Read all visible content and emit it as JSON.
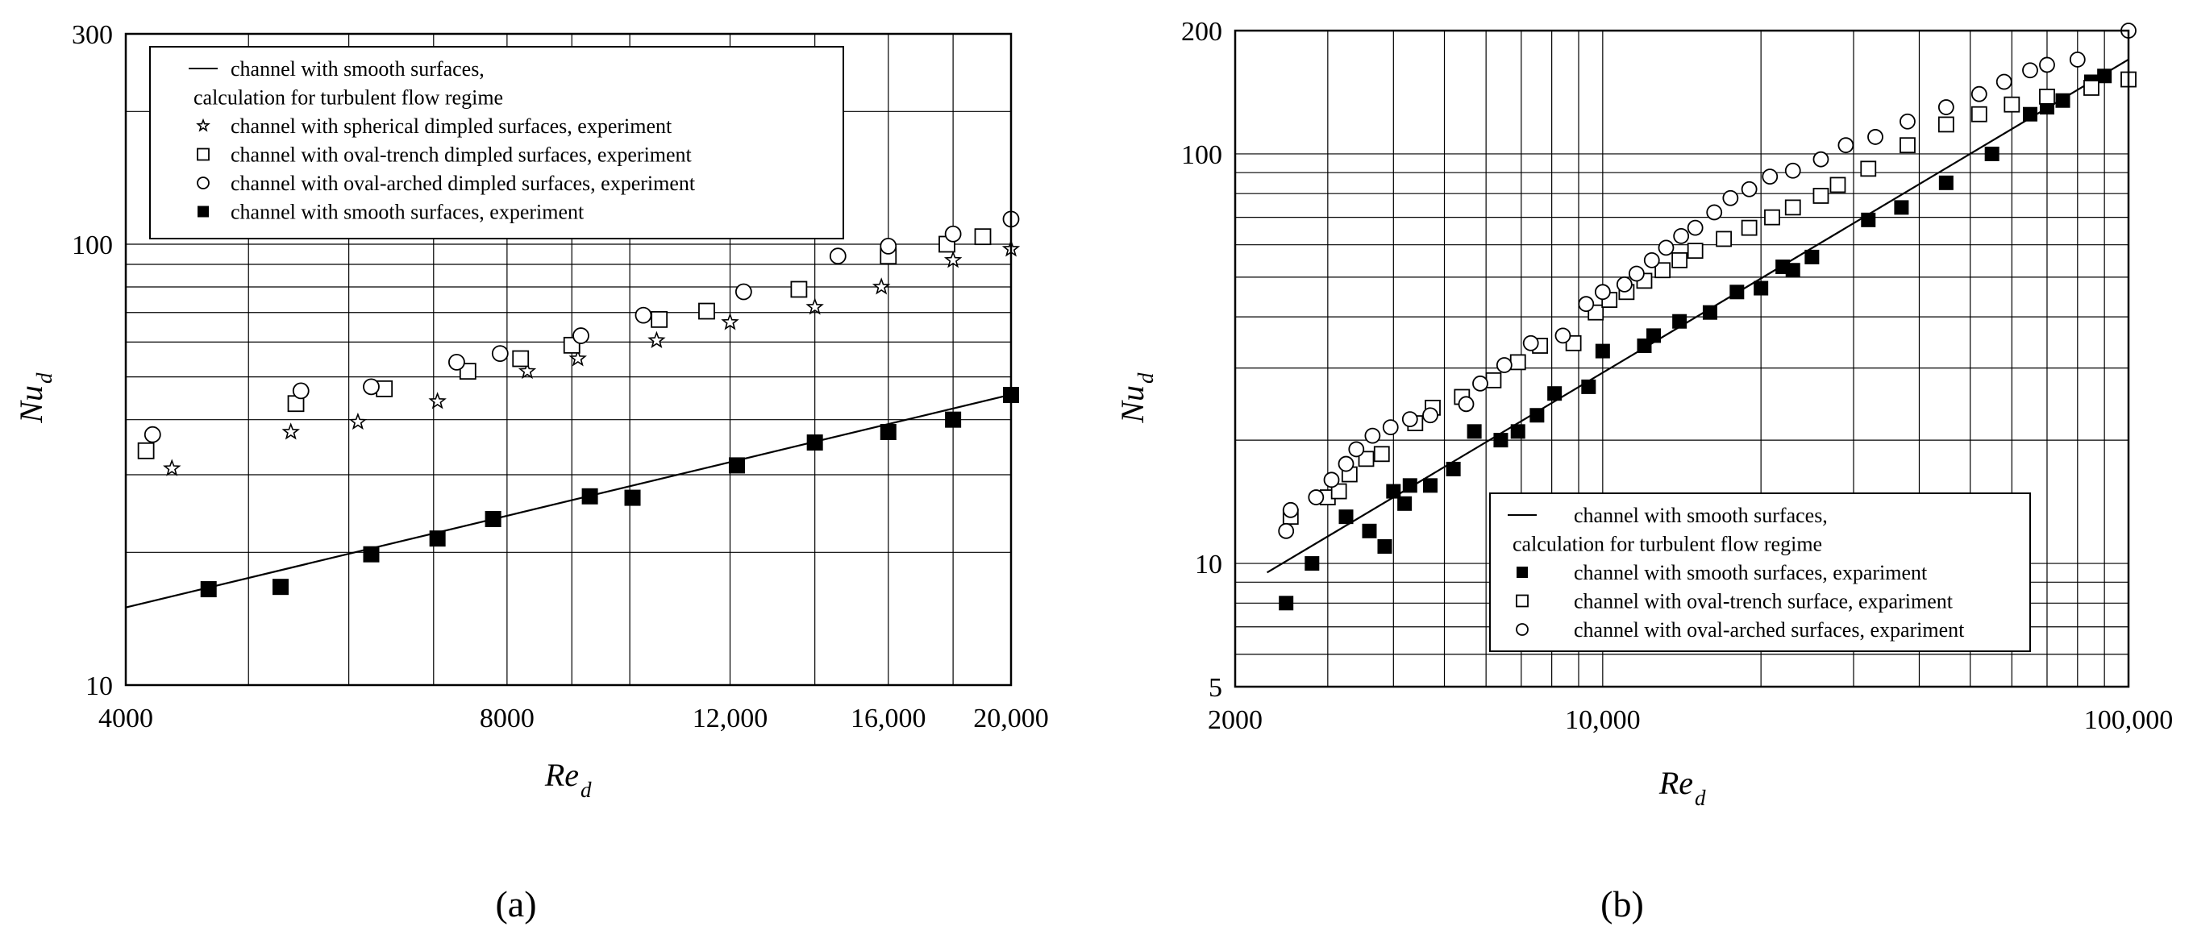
{
  "chart_data": [
    {
      "panel": "a",
      "type": "scatter",
      "x_scale": "log",
      "y_scale": "log",
      "xlim": [
        4000,
        20000
      ],
      "ylim": [
        10,
        300
      ],
      "xlabel": {
        "main": "Re",
        "sub": "d"
      },
      "ylabel": {
        "main": "Nu",
        "sub": "d"
      },
      "x_tick_labels": [
        {
          "value": 4000,
          "label": "4000"
        },
        {
          "value": 8000,
          "label": "8000"
        },
        {
          "value": 12000,
          "label": "12,000"
        },
        {
          "value": 16000,
          "label": "16,000"
        },
        {
          "value": 20000,
          "label": "20,000"
        }
      ],
      "y_tick_labels": [
        {
          "value": 10,
          "label": "10"
        },
        {
          "value": 100,
          "label": "100"
        },
        {
          "value": 300,
          "label": "300"
        }
      ],
      "x_gridlines": [
        4000,
        5000,
        6000,
        7000,
        8000,
        9000,
        10000,
        12000,
        14000,
        16000,
        18000,
        20000
      ],
      "y_gridlines": [
        10,
        20,
        30,
        40,
        50,
        60,
        70,
        80,
        90,
        100,
        200,
        300
      ],
      "grid": true,
      "legend_position": "top-left",
      "series": [
        {
          "name": "channel with smooth surfaces, calculation for turbulent flow regime",
          "legend_lines": [
            "channel with smooth surfaces,",
            "calculation for turbulent flow regime"
          ],
          "marker": "line",
          "x": [
            4000,
            20000
          ],
          "y": [
            15.0,
            45.6
          ]
        },
        {
          "name": "channel with spherical dimpled surfaces, experiment",
          "legend_lines": [
            "channel with spherical dimpled surfaces, experiment"
          ],
          "marker": "star",
          "x": [
            4350,
            5400,
            6100,
            7050,
            8300,
            9100,
            10500,
            12000,
            14000,
            15800,
            18000,
            20000
          ],
          "y": [
            31.0,
            37.5,
            39.5,
            44.0,
            51.5,
            55.0,
            60.5,
            66.5,
            72.0,
            80.0,
            92.0,
            97.5
          ]
        },
        {
          "name": "channel with oval-trench dimpled surfaces, experiment",
          "legend_lines": [
            "channel with oval-trench dimpled surfaces, experiment"
          ],
          "marker": "square-open",
          "x": [
            4150,
            5450,
            6400,
            7450,
            8200,
            9000,
            10550,
            11500,
            13600,
            16000,
            17800,
            19000
          ],
          "y": [
            34.0,
            43.5,
            47.0,
            51.5,
            55.0,
            59.0,
            67.5,
            70.5,
            79.0,
            94.0,
            100.0,
            104.0
          ]
        },
        {
          "name": "channel with oval-arched dimpled surfaces, experiment",
          "legend_lines": [
            "channel with oval-arched dimpled surfaces, experiment"
          ],
          "marker": "circle-open",
          "x": [
            4200,
            5500,
            6250,
            7300,
            7900,
            9150,
            10250,
            12300,
            14600,
            16000,
            18000,
            20000
          ],
          "y": [
            37.0,
            46.5,
            47.5,
            54.0,
            56.5,
            62.0,
            69.0,
            78.0,
            94.0,
            99.0,
            105.5,
            114.0
          ]
        },
        {
          "name": "channel with smooth surfaces, experiment",
          "legend_lines": [
            "channel with smooth surfaces, experiment"
          ],
          "marker": "square-filled",
          "x": [
            4650,
            5300,
            6250,
            7050,
            7800,
            9300,
            10050,
            12150,
            14000,
            16000,
            18000,
            20000
          ],
          "y": [
            16.5,
            16.7,
            19.8,
            21.5,
            23.8,
            26.8,
            26.6,
            31.5,
            35.5,
            37.5,
            40.0,
            45.5
          ]
        }
      ]
    },
    {
      "panel": "b",
      "type": "scatter",
      "x_scale": "log",
      "y_scale": "log",
      "xlim": [
        2000,
        100000
      ],
      "ylim": [
        5,
        200
      ],
      "xlabel": {
        "main": "Re",
        "sub": "d"
      },
      "ylabel": {
        "main": "Nu",
        "sub": "d"
      },
      "x_tick_labels": [
        {
          "value": 2000,
          "label": "2000"
        },
        {
          "value": 10000,
          "label": "10,000"
        },
        {
          "value": 100000,
          "label": "100,000"
        }
      ],
      "y_tick_labels": [
        {
          "value": 5,
          "label": "5"
        },
        {
          "value": 10,
          "label": "10"
        },
        {
          "value": 100,
          "label": "100"
        },
        {
          "value": 200,
          "label": "200"
        }
      ],
      "x_gridlines": [
        2000,
        3000,
        4000,
        5000,
        6000,
        7000,
        8000,
        9000,
        10000,
        20000,
        30000,
        40000,
        50000,
        60000,
        70000,
        80000,
        90000,
        100000
      ],
      "y_gridlines": [
        5,
        6,
        7,
        8,
        9,
        10,
        20,
        30,
        40,
        50,
        60,
        70,
        80,
        90,
        100,
        200
      ],
      "grid": true,
      "legend_position": "bottom-right",
      "series": [
        {
          "name": "channel with smooth surfaces, calculation for turbulent flow regime",
          "legend_lines": [
            "channel with smooth surfaces,",
            "calculation for turbulent flow regime"
          ],
          "marker": "line",
          "x": [
            2300,
            100000
          ],
          "y": [
            9.5,
            170.0
          ]
        },
        {
          "name": "channel with smooth surfaces, expariment",
          "legend_lines": [
            "channel with smooth surfaces, expariment"
          ],
          "marker": "square-filled",
          "x": [
            2500,
            2800,
            3250,
            3600,
            3850,
            4000,
            4200,
            4300,
            4700,
            5200,
            5700,
            6400,
            6900,
            7500,
            8100,
            9400,
            10000,
            12000,
            12500,
            14000,
            16000,
            18000,
            20000,
            22000,
            23000,
            25000,
            32000,
            37000,
            45000,
            55000,
            65000,
            70000,
            75000,
            85000,
            90000
          ],
          "y": [
            8.0,
            10.0,
            13.0,
            12.0,
            11.0,
            15.0,
            14.0,
            15.5,
            15.5,
            17.0,
            21.0,
            20.0,
            21.0,
            23.0,
            26.0,
            27.0,
            33.0,
            34.0,
            36.0,
            39.0,
            41.0,
            46.0,
            47.0,
            53.0,
            52.0,
            56.0,
            69.0,
            74.0,
            85.0,
            100.0,
            125.0,
            130.0,
            135.0,
            150.0,
            155.0
          ],
          "x_plot": [
            2500,
            2800,
            3250,
            3600,
            3850,
            4000,
            4200,
            4300,
            4700,
            5200,
            5700,
            6400,
            6900,
            7500,
            8100,
            9400,
            10000,
            12000,
            12500,
            14000,
            16000,
            18000,
            20000,
            22000,
            23000,
            25000,
            32000,
            37000,
            45000,
            55000,
            65000,
            70000,
            75000,
            85000,
            90000
          ]
        },
        {
          "name": "channel with oval-trench surface, expariment",
          "legend_lines": [
            "channel with oval-trench surface, expariment"
          ],
          "marker": "square-open",
          "x": [
            2550,
            3000,
            3150,
            3300,
            3550,
            3800,
            4400,
            4750,
            5400,
            6200,
            6900,
            7600,
            8800,
            9700,
            10300,
            11100,
            12000,
            13000,
            14000,
            15000,
            17000,
            19000,
            21000,
            23000,
            26000,
            28000,
            32000,
            38000,
            45000,
            52000,
            60000,
            70000,
            85000,
            100000
          ],
          "y": [
            13.0,
            14.5,
            15.0,
            16.5,
            18.0,
            18.5,
            22.0,
            24.0,
            25.5,
            28.0,
            31.0,
            34.0,
            34.5,
            41.0,
            44.0,
            46.0,
            49.0,
            52.0,
            55.0,
            58.0,
            62.0,
            66.0,
            70.0,
            74.0,
            79.0,
            84.0,
            92.0,
            105.0,
            118.0,
            125.0,
            132.0,
            138.0,
            145.0,
            152.0
          ]
        },
        {
          "name": "channel with oval-arched surfaces, expariment",
          "legend_lines": [
            "channel with oval-arched surfaces, expariment"
          ],
          "marker": "circle-open",
          "x": [
            2500,
            2550,
            2850,
            3050,
            3250,
            3400,
            3650,
            3950,
            4300,
            4700,
            5500,
            5850,
            6500,
            7300,
            8400,
            9300,
            10000,
            11000,
            11600,
            12400,
            13200,
            14100,
            15000,
            16300,
            17500,
            19000,
            20800,
            23000,
            26000,
            29000,
            33000,
            38000,
            45000,
            52000,
            58000,
            65000,
            70000,
            80000,
            100000
          ],
          "y": [
            12.0,
            13.5,
            14.5,
            16.0,
            17.5,
            19.0,
            20.5,
            21.5,
            22.5,
            23.0,
            24.5,
            27.5,
            30.5,
            34.5,
            36.0,
            43.0,
            46.0,
            48.0,
            51.0,
            55.0,
            59.0,
            63.0,
            66.0,
            72.0,
            78.0,
            82.0,
            88.0,
            91.0,
            97.0,
            105.0,
            110.0,
            120.0,
            130.0,
            140.0,
            150.0,
            160.0,
            165.0,
            170.0,
            200.0
          ]
        }
      ]
    }
  ],
  "panel_labels": [
    "(a)",
    "(b)"
  ]
}
